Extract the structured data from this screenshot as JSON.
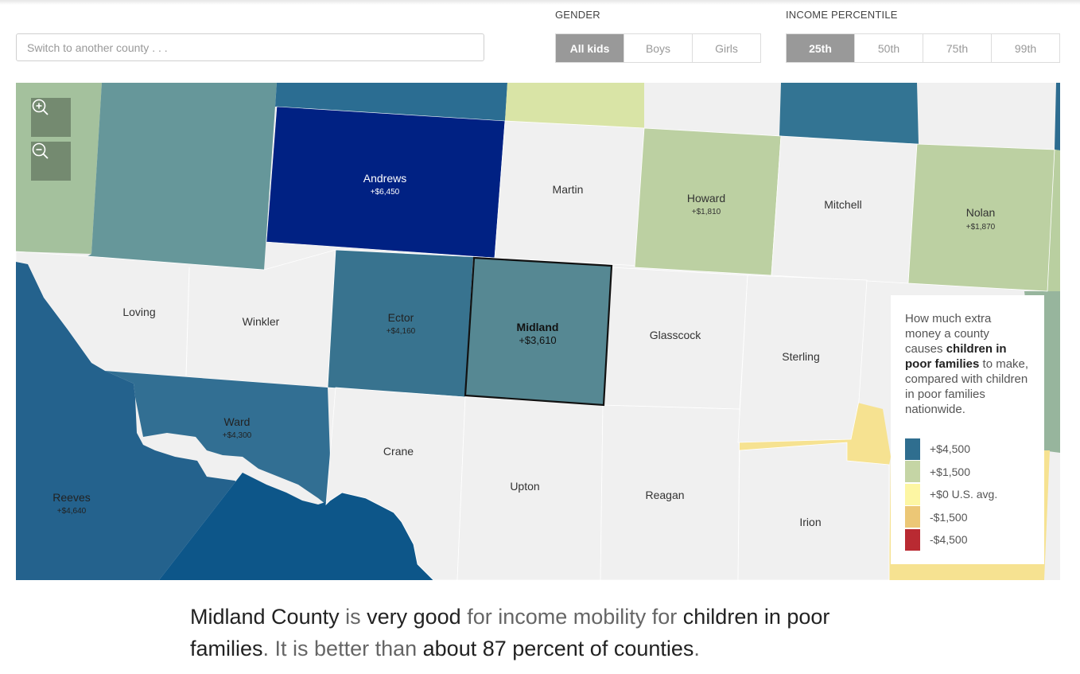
{
  "search": {
    "placeholder": "Switch to another county . . ."
  },
  "gender": {
    "label": "GENDER",
    "options": [
      "All kids",
      "Boys",
      "Girls"
    ],
    "selected": "All kids"
  },
  "income": {
    "label": "INCOME PERCENTILE",
    "options": [
      "25th",
      "50th",
      "75th",
      "99th"
    ],
    "selected": "25th"
  },
  "map": {
    "zoom_in_icon": "zoom-in-icon",
    "zoom_out_icon": "zoom-out-icon",
    "selected_county": "Midland",
    "counties": [
      {
        "name": "Andrews",
        "value": "+$6,450",
        "color": "#002183"
      },
      {
        "name": "Martin",
        "value": "",
        "color": "#f0f0f0"
      },
      {
        "name": "Howard",
        "value": "+$1,810",
        "color": "#bcd0a2"
      },
      {
        "name": "Mitchell",
        "value": "",
        "color": "#f0f0f0"
      },
      {
        "name": "Nolan",
        "value": "+$1,870",
        "color": "#bcd0a2"
      },
      {
        "name": "Loving",
        "value": "",
        "color": "#f0f0f0"
      },
      {
        "name": "Winkler",
        "value": "",
        "color": "#f0f0f0"
      },
      {
        "name": "Ector",
        "value": "+$4,160",
        "color": "#38738f"
      },
      {
        "name": "Midland",
        "value": "+$3,610",
        "color": "#568893"
      },
      {
        "name": "Glasscock",
        "value": "",
        "color": "#f0f0f0"
      },
      {
        "name": "Sterling",
        "value": "",
        "color": "#f0f0f0"
      },
      {
        "name": "Ward",
        "value": "+$4,300",
        "color": "#326f93"
      },
      {
        "name": "Crane",
        "value": "",
        "color": "#f0f0f0"
      },
      {
        "name": "Upton",
        "value": "",
        "color": "#f0f0f0"
      },
      {
        "name": "Reagan",
        "value": "",
        "color": "#f0f0f0"
      },
      {
        "name": "Irion",
        "value": "",
        "color": "#f0f0f0"
      },
      {
        "name": "Reeves",
        "value": "+$4,640",
        "color": "#24628d"
      }
    ]
  },
  "legend": {
    "title_pre": "How much extra money a county causes ",
    "title_bold": "children in poor families",
    "title_post": " to make, compared with children in poor families nationwide.",
    "items": [
      {
        "label": "+$4,500",
        "color": "#2f6e8f"
      },
      {
        "label": "+$1,500",
        "color": "#c5d5a5"
      },
      {
        "label": "+$0 U.S. avg.",
        "color": "#fdf6a3"
      },
      {
        "label": "-$1,500",
        "color": "#ecc776"
      },
      {
        "label": "-$4,500",
        "color": "#b92a32"
      }
    ]
  },
  "caption": {
    "p1": "Midland County",
    "p2": " is ",
    "p3": "very good",
    "p4": " for income mobility for ",
    "p5": "children in poor families",
    "p6": ". It is better than ",
    "p7": "about 87 percent of counties",
    "p8": "."
  }
}
